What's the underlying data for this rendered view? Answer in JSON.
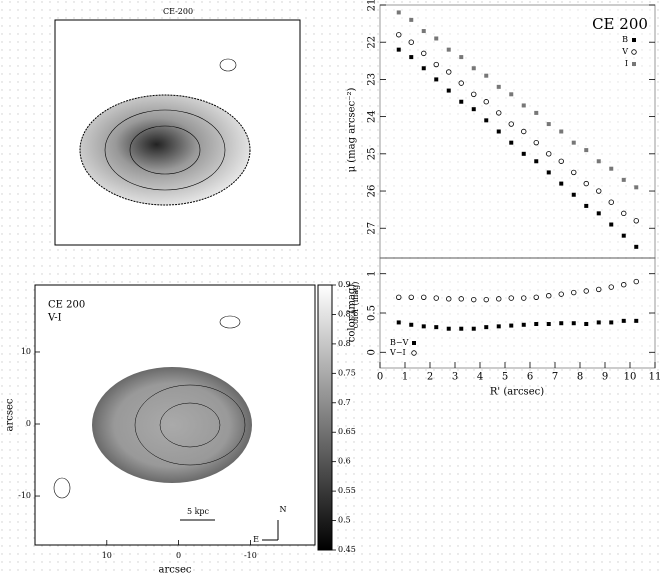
{
  "chart_data": [
    {
      "type": "image",
      "title": "CE-200"
    },
    {
      "type": "image",
      "title": "CE 200",
      "subtitle": "V-I",
      "scale_label": "5 kpc",
      "north": "N",
      "east": "E",
      "xlabel": "arcsec",
      "ylabel": "arcsec",
      "colorbar_label": "color (mag)",
      "xlim": [
        20,
        -19
      ],
      "xticks": [
        10,
        0,
        -10
      ],
      "ylim": [
        -16.8,
        19.3
      ],
      "yticks": [
        10,
        0,
        -10
      ],
      "clim": [
        0.45,
        0.9
      ],
      "cticks": [
        0.45,
        0.5,
        0.55,
        0.6,
        0.65,
        0.7,
        0.75,
        0.8,
        0.85,
        0.9
      ]
    },
    {
      "type": "scatter",
      "title": "CE 200",
      "ylabel": "μ (mag arcsec⁻²)",
      "y_inverted": true,
      "xlim": [
        0,
        11
      ],
      "ylim": [
        21,
        27.8
      ],
      "yticks": [
        21,
        22,
        23,
        24,
        25,
        26,
        27
      ],
      "x": [
        0.75,
        1.25,
        1.75,
        2.25,
        2.75,
        3.25,
        3.75,
        4.25,
        4.75,
        5.25,
        5.75,
        6.25,
        6.75,
        7.25,
        7.75,
        8.25,
        8.75,
        9.25,
        9.75,
        10.25
      ],
      "series": [
        {
          "name": "B",
          "color": "#000000",
          "marker": "square",
          "values": [
            22.2,
            22.4,
            22.7,
            23.0,
            23.3,
            23.6,
            23.8,
            24.1,
            24.4,
            24.7,
            25.0,
            25.2,
            25.5,
            25.8,
            26.1,
            26.4,
            26.6,
            26.9,
            27.2,
            27.5
          ]
        },
        {
          "name": "V",
          "color": "#000000",
          "marker": "circle-open",
          "values": [
            21.8,
            22.0,
            22.3,
            22.6,
            22.8,
            23.1,
            23.4,
            23.6,
            23.9,
            24.2,
            24.4,
            24.7,
            25.0,
            25.2,
            25.5,
            25.8,
            26.0,
            26.3,
            26.6,
            26.8
          ]
        },
        {
          "name": "I",
          "color": "#777777",
          "marker": "square",
          "values": [
            21.2,
            21.4,
            21.7,
            21.9,
            22.2,
            22.4,
            22.7,
            22.9,
            23.2,
            23.4,
            23.7,
            23.9,
            24.2,
            24.4,
            24.7,
            24.9,
            25.2,
            25.4,
            25.7,
            25.9
          ]
        }
      ]
    },
    {
      "type": "scatter",
      "xlabel": "R' (arcsec)",
      "ylabel": "color (mag)",
      "xlim": [
        0,
        11
      ],
      "xticks": [
        0,
        1,
        2,
        3,
        4,
        5,
        6,
        7,
        8,
        9,
        10,
        11
      ],
      "ylim": [
        -0.2,
        1.2
      ],
      "yticks": [
        0,
        0.5,
        1
      ],
      "x": [
        0.75,
        1.25,
        1.75,
        2.25,
        2.75,
        3.25,
        3.75,
        4.25,
        4.75,
        5.25,
        5.75,
        6.25,
        6.75,
        7.25,
        7.75,
        8.25,
        8.75,
        9.25,
        9.75,
        10.25
      ],
      "series": [
        {
          "name": "B−V",
          "color": "#000000",
          "marker": "square",
          "values": [
            0.38,
            0.35,
            0.33,
            0.32,
            0.3,
            0.3,
            0.3,
            0.32,
            0.33,
            0.34,
            0.35,
            0.36,
            0.36,
            0.37,
            0.37,
            0.36,
            0.38,
            0.38,
            0.4,
            0.4
          ]
        },
        {
          "name": "V−I",
          "color": "#000000",
          "marker": "circle-open",
          "values": [
            0.7,
            0.7,
            0.7,
            0.69,
            0.68,
            0.68,
            0.67,
            0.67,
            0.68,
            0.69,
            0.69,
            0.7,
            0.72,
            0.74,
            0.76,
            0.78,
            0.8,
            0.83,
            0.86,
            0.9
          ]
        }
      ]
    }
  ]
}
